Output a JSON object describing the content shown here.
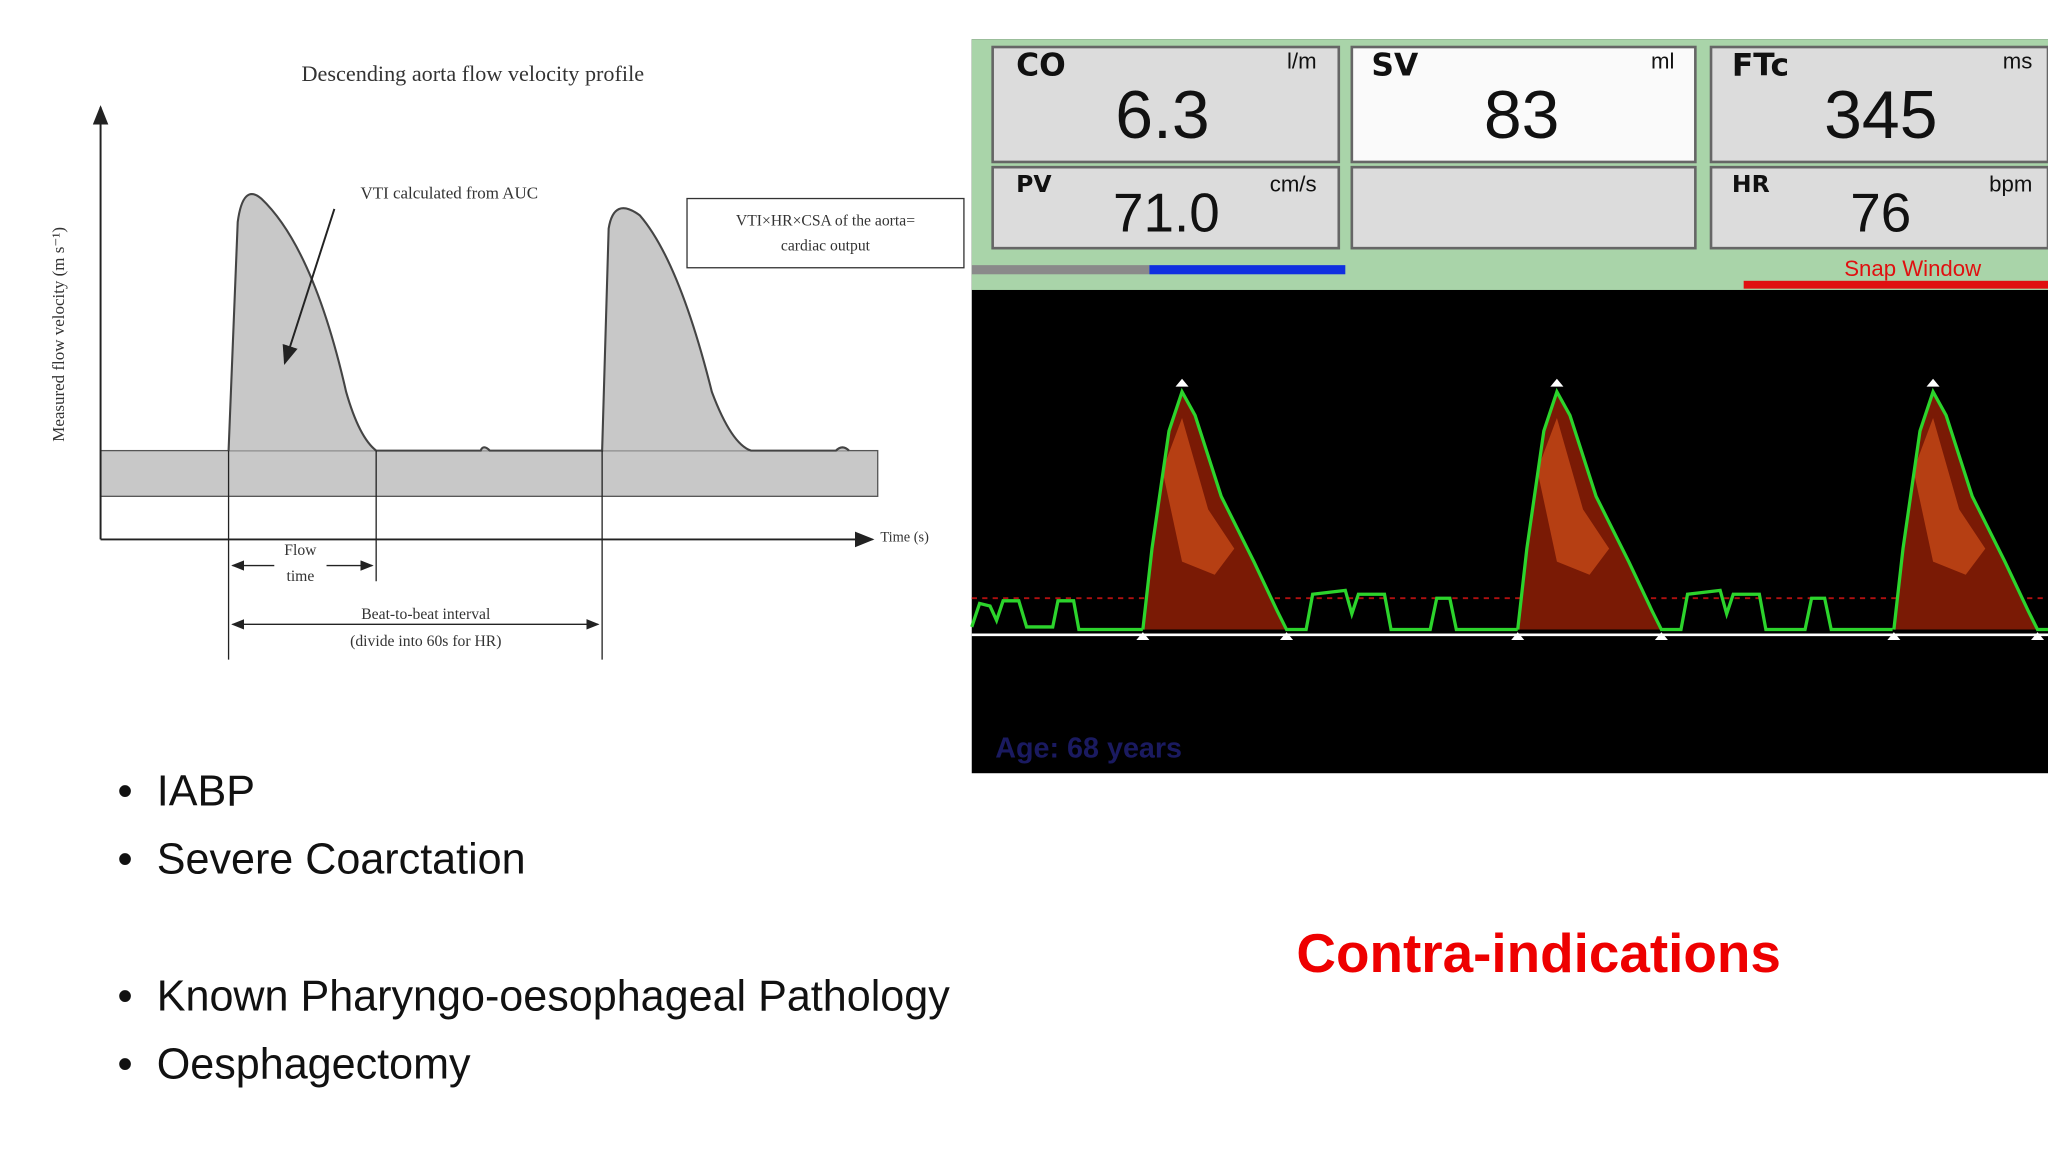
{
  "diagram": {
    "title": "Descending aorta flow velocity profile",
    "y_axis_label": "Measured flow velocity (m s⁻¹)",
    "x_axis_label": "Time (s)",
    "vti_annotation": "VTI calculated from AUC",
    "box_lines": [
      "VTI×HR×CSA of the aorta=",
      "cardiac output"
    ],
    "flow_time": [
      "Flow",
      "time"
    ],
    "beat_interval": [
      "Beat-to-beat interval",
      "(divide into 60s for HR)"
    ]
  },
  "monitor": {
    "cells": [
      {
        "label": "CO",
        "unit": "l/m",
        "value": "6.3"
      },
      {
        "label": "SV",
        "unit": "ml",
        "value": "83"
      },
      {
        "label": "FTc",
        "unit": "ms",
        "value": "345"
      },
      {
        "label": "PV",
        "unit": "cm/s",
        "value": "71.0"
      },
      {
        "label": "HR",
        "unit": "bpm",
        "value": "76"
      }
    ],
    "snap_label": "Snap Window",
    "age_label": "Age: 68 years"
  },
  "bullets": [
    [
      "IABP",
      "Severe Coarctation"
    ],
    [
      "Known Pharyngo-oesophageal Pathology",
      "Oesphagectomy"
    ]
  ],
  "heading": "Contra-indications"
}
